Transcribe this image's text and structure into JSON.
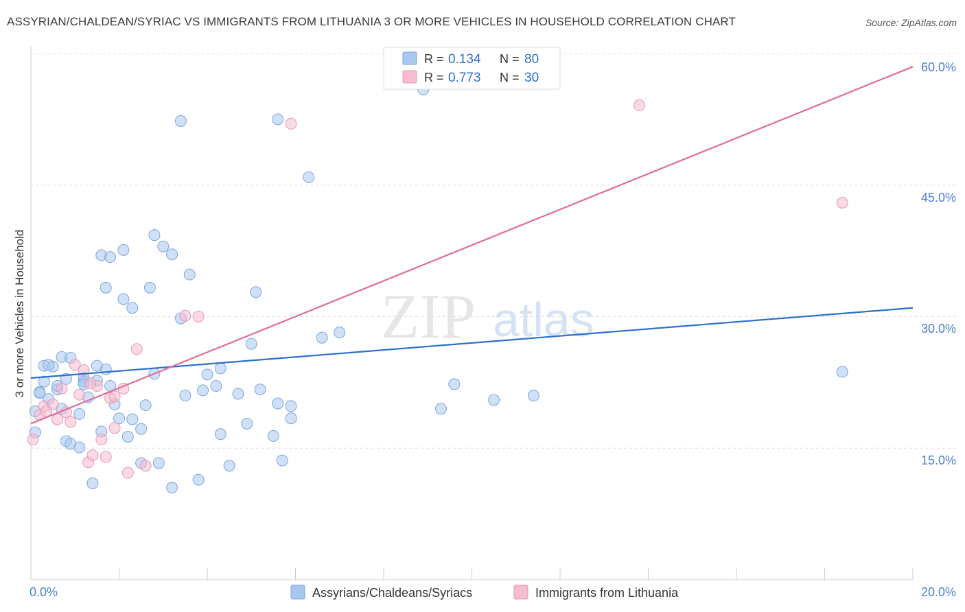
{
  "header": {
    "title": "ASSYRIAN/CHALDEAN/SYRIAC VS IMMIGRANTS FROM LITHUANIA 3 OR MORE VEHICLES IN HOUSEHOLD CORRELATION CHART",
    "source": "Source: ZipAtlas.com"
  },
  "watermark": {
    "zip": "ZIP",
    "atlas": "atlas"
  },
  "colors": {
    "blue_fill": "#a9c8f0",
    "blue_stroke": "#7aa6dc",
    "blue_line": "#2a6fcf",
    "pink_fill": "#f6bcd0",
    "pink_stroke": "#e896b4",
    "pink_line": "#e06c97",
    "tick_label": "#4a7fcf",
    "grid": "#dddddd"
  },
  "chart_data": {
    "type": "scatter",
    "title": "ASSYRIAN/CHALDEAN/SYRIAC VS IMMIGRANTS FROM LITHUANIA 3 OR MORE VEHICLES IN HOUSEHOLD CORRELATION CHART",
    "xlabel": "",
    "ylabel": "3 or more Vehicles in Household",
    "xlim": [
      0,
      20
    ],
    "ylim": [
      0,
      60
    ],
    "x_tick_labels": [
      "0.0%",
      "20.0%"
    ],
    "y_ticks": [
      15,
      30,
      45,
      60
    ],
    "y_tick_labels": [
      "15.0%",
      "30.0%",
      "45.0%",
      "60.0%"
    ],
    "grid": true,
    "legend_top": [
      {
        "r_label": "R =",
        "r_value": "0.134",
        "n_label": "N =",
        "n_value": "80"
      },
      {
        "r_label": "R =",
        "r_value": "0.773",
        "n_label": "N =",
        "n_value": "30"
      }
    ],
    "series": [
      {
        "name": "Assyrians/Chaldeans/Syriacs",
        "color": "#a9c8f0",
        "trend": {
          "x": [
            0,
            20
          ],
          "y": [
            23.0,
            31.0
          ]
        },
        "points": [
          [
            0.1,
            16.8
          ],
          [
            0.1,
            19.2
          ],
          [
            0.2,
            21.4
          ],
          [
            0.3,
            22.6
          ],
          [
            0.3,
            24.4
          ],
          [
            0.4,
            20.6
          ],
          [
            0.5,
            24.3
          ],
          [
            0.6,
            21.7
          ],
          [
            0.6,
            22.1
          ],
          [
            0.7,
            25.4
          ],
          [
            0.7,
            19.5
          ],
          [
            0.8,
            15.8
          ],
          [
            0.8,
            22.9
          ],
          [
            0.9,
            25.3
          ],
          [
            0.9,
            15.5
          ],
          [
            1.1,
            15.1
          ],
          [
            1.1,
            18.9
          ],
          [
            1.2,
            23.0
          ],
          [
            1.2,
            22.6
          ],
          [
            1.3,
            20.8
          ],
          [
            1.4,
            11.0
          ],
          [
            1.5,
            24.4
          ],
          [
            1.5,
            22.7
          ],
          [
            1.6,
            37.0
          ],
          [
            1.6,
            16.9
          ],
          [
            1.7,
            24.0
          ],
          [
            1.7,
            33.3
          ],
          [
            1.8,
            36.8
          ],
          [
            1.9,
            20.0
          ],
          [
            2.0,
            18.4
          ],
          [
            2.1,
            37.6
          ],
          [
            2.1,
            32.0
          ],
          [
            2.2,
            16.3
          ],
          [
            2.3,
            31.0
          ],
          [
            2.3,
            18.3
          ],
          [
            2.5,
            13.3
          ],
          [
            2.5,
            17.2
          ],
          [
            2.6,
            19.9
          ],
          [
            2.7,
            33.3
          ],
          [
            2.8,
            23.5
          ],
          [
            2.8,
            39.3
          ],
          [
            2.9,
            13.3
          ],
          [
            3.0,
            38.0
          ],
          [
            3.2,
            10.5
          ],
          [
            3.2,
            37.1
          ],
          [
            3.4,
            52.3
          ],
          [
            3.4,
            29.8
          ],
          [
            3.5,
            21.0
          ],
          [
            3.6,
            34.8
          ],
          [
            3.8,
            11.4
          ],
          [
            3.9,
            21.6
          ],
          [
            4.0,
            23.4
          ],
          [
            4.2,
            22.1
          ],
          [
            4.3,
            16.6
          ],
          [
            4.3,
            24.1
          ],
          [
            4.5,
            13.0
          ],
          [
            4.7,
            21.2
          ],
          [
            4.9,
            17.8
          ],
          [
            5.1,
            32.8
          ],
          [
            5.0,
            26.9
          ],
          [
            5.2,
            21.7
          ],
          [
            5.5,
            16.4
          ],
          [
            5.6,
            20.1
          ],
          [
            5.6,
            52.5
          ],
          [
            5.7,
            13.6
          ],
          [
            5.9,
            18.4
          ],
          [
            5.9,
            19.8
          ],
          [
            6.3,
            45.9
          ],
          [
            6.6,
            27.6
          ],
          [
            7.0,
            28.2
          ],
          [
            8.9,
            55.9
          ],
          [
            9.3,
            19.5
          ],
          [
            9.6,
            22.3
          ],
          [
            10.5,
            20.5
          ],
          [
            11.4,
            21.0
          ],
          [
            18.4,
            23.7
          ],
          [
            1.2,
            22.3
          ],
          [
            0.4,
            24.5
          ],
          [
            1.8,
            22.1
          ],
          [
            0.2,
            21.3
          ]
        ]
      },
      {
        "name": "Immigrants from Lithuania",
        "color": "#f6bcd0",
        "trend": {
          "x": [
            0,
            20
          ],
          "y": [
            17.8,
            58.5
          ]
        },
        "points": [
          [
            0.05,
            16.0
          ],
          [
            0.2,
            18.8
          ],
          [
            0.3,
            19.8
          ],
          [
            0.5,
            20.0
          ],
          [
            0.6,
            18.3
          ],
          [
            0.7,
            21.8
          ],
          [
            0.8,
            19.1
          ],
          [
            0.9,
            18.0
          ],
          [
            1.0,
            24.5
          ],
          [
            1.1,
            21.1
          ],
          [
            1.2,
            23.9
          ],
          [
            1.3,
            13.4
          ],
          [
            1.4,
            14.2
          ],
          [
            1.5,
            22.1
          ],
          [
            1.6,
            16.0
          ],
          [
            1.7,
            14.0
          ],
          [
            1.8,
            20.7
          ],
          [
            1.9,
            17.3
          ],
          [
            1.9,
            20.9
          ],
          [
            2.1,
            21.8
          ],
          [
            2.2,
            12.2
          ],
          [
            2.4,
            26.3
          ],
          [
            2.6,
            13.0
          ],
          [
            3.5,
            30.1
          ],
          [
            3.8,
            30.0
          ],
          [
            5.9,
            52.0
          ],
          [
            13.8,
            54.1
          ],
          [
            18.4,
            43.0
          ],
          [
            0.35,
            19.2
          ],
          [
            1.35,
            22.4
          ]
        ]
      }
    ]
  },
  "bottom_legend": [
    {
      "label": "Assyrians/Chaldeans/Syriacs"
    },
    {
      "label": "Immigrants from Lithuania"
    }
  ]
}
